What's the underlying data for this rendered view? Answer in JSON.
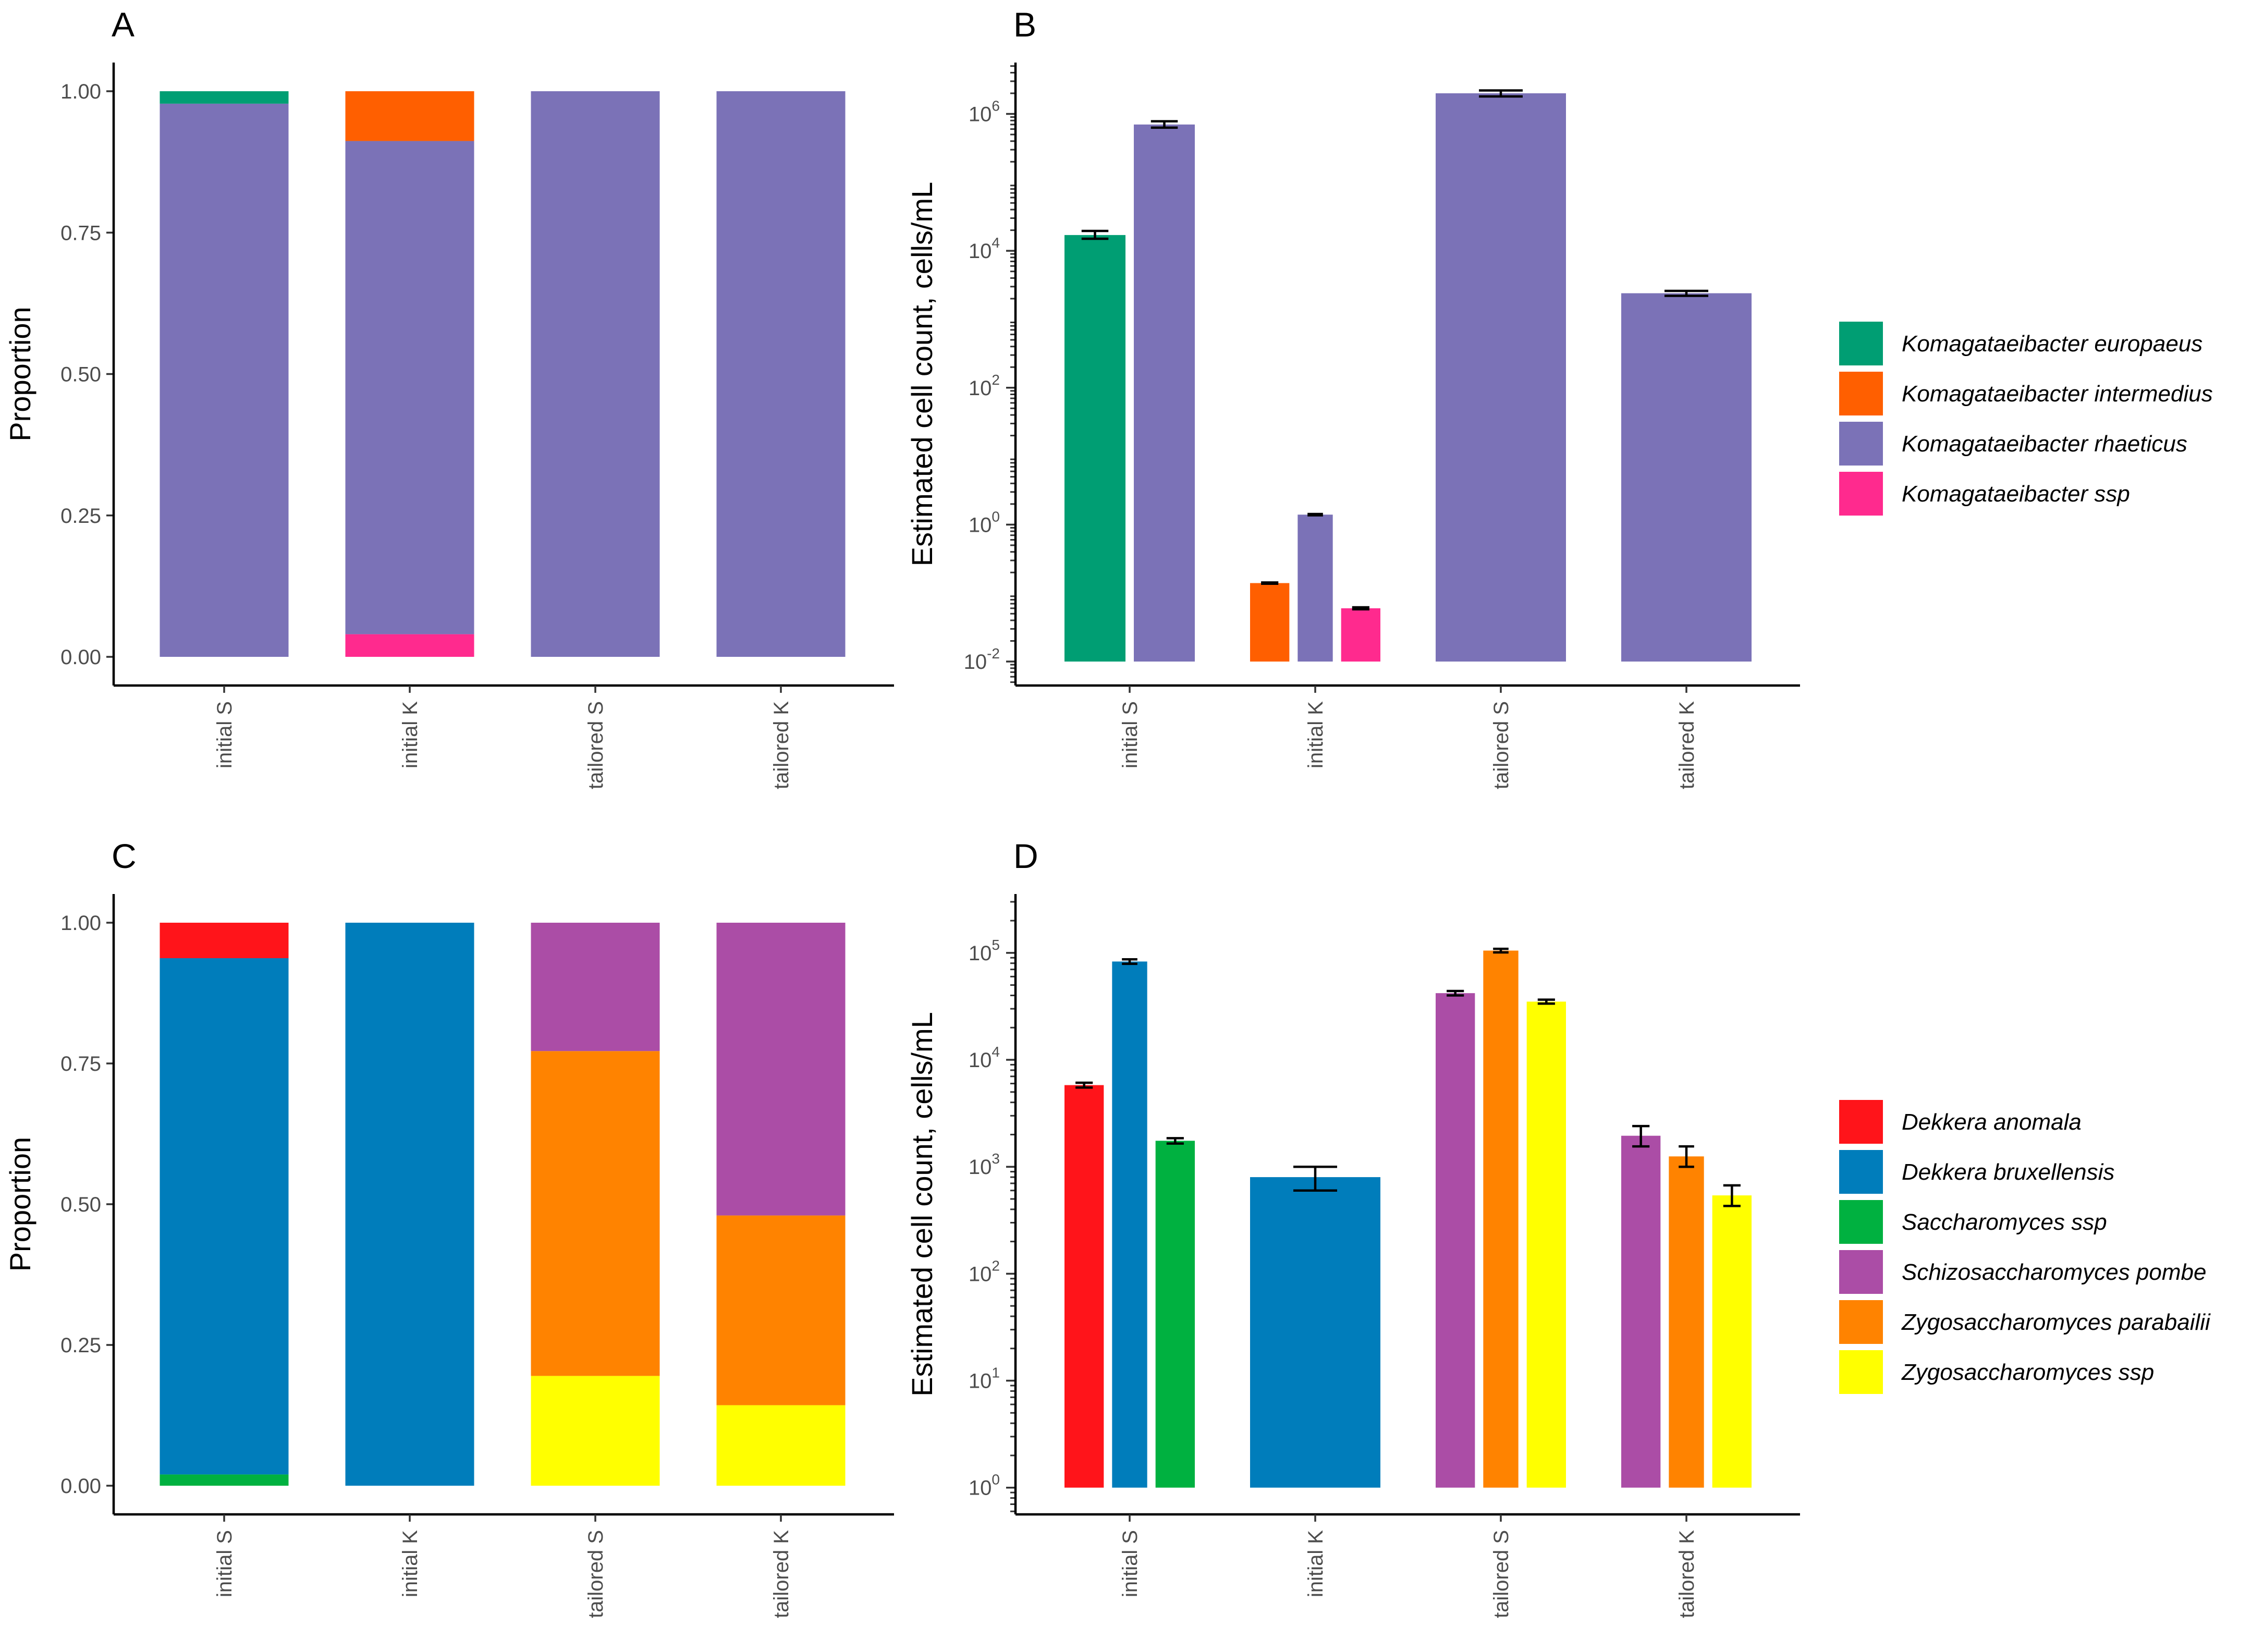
{
  "colors": {
    "Komagataeibacter europaeus": "#009E73",
    "Komagataeibacter intermedius": "#FF5F00",
    "Komagataeibacter rhaeticus": "#7B72B7",
    "Komagataeibacter ssp": "#FF2A8E",
    "Dekkera anomala": "#FF141A",
    "Dekkera bruxellensis": "#007DBB",
    "Saccharomyces ssp": "#00B140",
    "Schizosaccharomyces pombe": "#AB4DA6",
    "Zygosaccharomyces parabailii": "#FF8300",
    "Zygosaccharomyces ssp": "#FFFF00"
  },
  "legends": {
    "bacteria": [
      "Komagataeibacter europaeus",
      "Komagataeibacter intermedius",
      "Komagataeibacter rhaeticus",
      "Komagataeibacter ssp"
    ],
    "yeast": [
      "Dekkera anomala",
      "Dekkera bruxellensis",
      "Saccharomyces ssp",
      "Schizosaccharomyces pombe",
      "Zygosaccharomyces parabailii",
      "Zygosaccharomyces ssp"
    ]
  },
  "chart_data": [
    {
      "panel": "A",
      "type": "bar",
      "stacked": true,
      "ylabel": "Proportion",
      "ylim": [
        0,
        1
      ],
      "yticks": [
        "0.00",
        "0.25",
        "0.50",
        "0.75",
        "1.00"
      ],
      "categories": [
        "initial S",
        "initial K",
        "tailored S",
        "tailored K"
      ],
      "series": [
        {
          "name": "Komagataeibacter ssp",
          "values": [
            0,
            0.04,
            0,
            0
          ]
        },
        {
          "name": "Komagataeibacter rhaeticus",
          "values": [
            0.978,
            0.872,
            1.0,
            1.0
          ]
        },
        {
          "name": "Komagataeibacter intermedius",
          "values": [
            0,
            0.088,
            0,
            0
          ]
        },
        {
          "name": "Komagataeibacter europaeus",
          "values": [
            0.022,
            0,
            0,
            0
          ]
        }
      ]
    },
    {
      "panel": "B",
      "type": "bar",
      "scale": "log10",
      "ylabel": "Estimated cell count, cells/mL",
      "ylim_exp": [
        -2.35,
        6.75
      ],
      "baseline_exp": -2,
      "yticks_exp": [
        -2,
        0,
        2,
        4,
        6
      ],
      "categories": [
        "initial S",
        "initial K",
        "tailored S",
        "tailored K"
      ],
      "bars": [
        {
          "category": "initial S",
          "species": "Komagataeibacter europaeus",
          "value": 17000,
          "err_low": 15000,
          "err_high": 19500
        },
        {
          "category": "initial S",
          "species": "Komagataeibacter rhaeticus",
          "value": 700000,
          "err_low": 630000,
          "err_high": 780000
        },
        {
          "category": "initial K",
          "species": "Komagataeibacter intermedius",
          "value": 0.14,
          "err_low": 0.137,
          "err_high": 0.143
        },
        {
          "category": "initial K",
          "species": "Komagataeibacter rhaeticus",
          "value": 1.4,
          "err_low": 1.37,
          "err_high": 1.43
        },
        {
          "category": "initial K",
          "species": "Komagataeibacter ssp",
          "value": 0.06,
          "err_low": 0.058,
          "err_high": 0.062
        },
        {
          "category": "tailored S",
          "species": "Komagataeibacter rhaeticus",
          "value": 2000000,
          "err_low": 1800000,
          "err_high": 2200000
        },
        {
          "category": "tailored K",
          "species": "Komagataeibacter rhaeticus",
          "value": 2400,
          "err_low": 2200,
          "err_high": 2600
        }
      ]
    },
    {
      "panel": "C",
      "type": "bar",
      "stacked": true,
      "ylabel": "Proportion",
      "ylim": [
        0,
        1
      ],
      "yticks": [
        "0.00",
        "0.25",
        "0.50",
        "0.75",
        "1.00"
      ],
      "categories": [
        "initial S",
        "initial K",
        "tailored S",
        "tailored K"
      ],
      "series": [
        {
          "name": "Zygosaccharomyces ssp",
          "values": [
            0,
            0,
            0.195,
            0.143
          ]
        },
        {
          "name": "Zygosaccharomyces parabailii",
          "values": [
            0,
            0,
            0.577,
            0.337
          ]
        },
        {
          "name": "Schizosaccharomyces pombe",
          "values": [
            0,
            0,
            0.228,
            0.52
          ]
        },
        {
          "name": "Saccharomyces ssp",
          "values": [
            0.02,
            0,
            0,
            0
          ]
        },
        {
          "name": "Dekkera bruxellensis",
          "values": [
            0.917,
            1.0,
            0,
            0
          ]
        },
        {
          "name": "Dekkera anomala",
          "values": [
            0.063,
            0,
            0,
            0
          ]
        }
      ]
    },
    {
      "panel": "D",
      "type": "bar",
      "scale": "log10",
      "ylabel": "Estimated cell count, cells/mL",
      "ylim_exp": [
        -0.25,
        5.55
      ],
      "baseline_exp": 0,
      "yticks_exp": [
        0,
        1,
        2,
        3,
        4,
        5
      ],
      "categories": [
        "initial S",
        "initial K",
        "tailored S",
        "tailored K"
      ],
      "bars": [
        {
          "category": "initial S",
          "species": "Dekkera anomala",
          "value": 5800,
          "err_low": 5500,
          "err_high": 6100
        },
        {
          "category": "initial S",
          "species": "Dekkera bruxellensis",
          "value": 83000,
          "err_low": 79000,
          "err_high": 87000
        },
        {
          "category": "initial S",
          "species": "Saccharomyces ssp",
          "value": 1750,
          "err_low": 1650,
          "err_high": 1850
        },
        {
          "category": "initial K",
          "species": "Dekkera bruxellensis",
          "value": 800,
          "err_low": 600,
          "err_high": 1000
        },
        {
          "category": "tailored S",
          "species": "Schizosaccharomyces pombe",
          "value": 42000,
          "err_low": 40000,
          "err_high": 44000
        },
        {
          "category": "tailored S",
          "species": "Zygosaccharomyces parabailii",
          "value": 105000,
          "err_low": 101000,
          "err_high": 109000
        },
        {
          "category": "tailored S",
          "species": "Zygosaccharomyces ssp",
          "value": 35000,
          "err_low": 33500,
          "err_high": 36500
        },
        {
          "category": "tailored K",
          "species": "Schizosaccharomyces pombe",
          "value": 1950,
          "err_low": 1550,
          "err_high": 2400
        },
        {
          "category": "tailored K",
          "species": "Zygosaccharomyces parabailii",
          "value": 1250,
          "err_low": 1000,
          "err_high": 1550
        },
        {
          "category": "tailored K",
          "species": "Zygosaccharomyces ssp",
          "value": 540,
          "err_low": 430,
          "err_high": 670
        }
      ]
    }
  ]
}
